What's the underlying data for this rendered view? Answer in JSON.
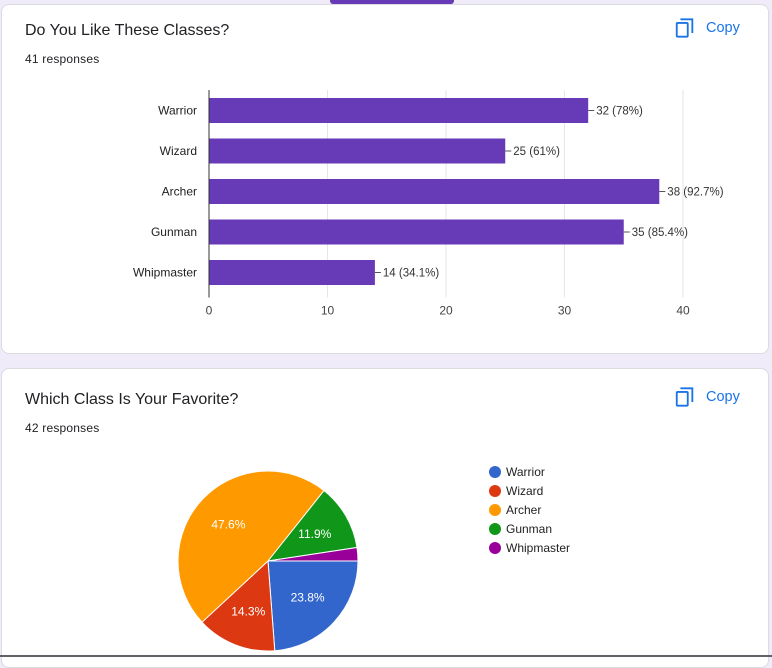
{
  "cards": [
    {
      "title": "Do You Like These Classes?",
      "responses": "41 responses",
      "copy_label": "Copy"
    },
    {
      "title": "Which Class Is Your Favorite?",
      "responses": "42 responses",
      "copy_label": "Copy"
    }
  ],
  "colors": {
    "accent": "#673ab7",
    "bar": "#673ab7",
    "copy_blue": "#1a73e8"
  },
  "icons": {
    "copy": "copy-icon"
  },
  "chart_data": [
    {
      "type": "bar",
      "orientation": "horizontal",
      "categories": [
        "Warrior",
        "Wizard",
        "Archer",
        "Gunman",
        "Whipmaster"
      ],
      "values": [
        32,
        25,
        38,
        35,
        14
      ],
      "data_labels": [
        "32 (78%)",
        "25 (61%)",
        "38 (92.7%)",
        "35 (85.4%)",
        "14 (34.1%)"
      ],
      "xlim": [
        0,
        40
      ],
      "xticks": [
        0,
        10,
        20,
        30,
        40
      ],
      "grid": true,
      "color": "#673ab7"
    },
    {
      "type": "pie",
      "labels": [
        "Warrior",
        "Wizard",
        "Archer",
        "Gunman",
        "Whipmaster"
      ],
      "values": [
        23.8,
        14.3,
        47.6,
        11.9,
        2.4
      ],
      "slice_labels": [
        "23.8%",
        "14.3%",
        "47.6%",
        "11.9%",
        ""
      ],
      "colors": [
        "#3366cc",
        "#dc3912",
        "#ff9900",
        "#109618",
        "#990099"
      ],
      "legend_position": "right"
    }
  ]
}
